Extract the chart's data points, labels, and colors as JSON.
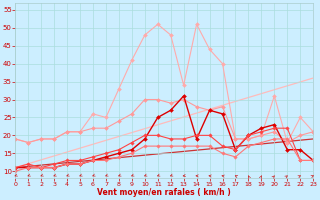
{
  "xlabel": "Vent moyen/en rafales ( km/h )",
  "xlim": [
    0,
    23
  ],
  "ylim": [
    8,
    57
  ],
  "yticks": [
    10,
    15,
    20,
    25,
    30,
    35,
    40,
    45,
    50,
    55
  ],
  "xticks": [
    0,
    1,
    2,
    3,
    4,
    5,
    6,
    7,
    8,
    9,
    10,
    11,
    12,
    13,
    14,
    15,
    16,
    17,
    18,
    19,
    20,
    21,
    22,
    23
  ],
  "background_color": "#cceeff",
  "grid_color": "#aadddd",
  "series": [
    {
      "label": "light_pink_line",
      "x": [
        0,
        1,
        2,
        3,
        4,
        5,
        6,
        7,
        8,
        9,
        10,
        11,
        12,
        13,
        14,
        15,
        16,
        17,
        18,
        19,
        20,
        21,
        22,
        23
      ],
      "y": [
        19,
        18,
        19,
        19,
        21,
        21,
        26,
        25,
        33,
        41,
        48,
        51,
        48,
        34,
        51,
        44,
        40,
        19,
        19,
        20,
        31,
        18,
        25,
        21
      ],
      "color": "#ffaaaa",
      "linewidth": 0.8,
      "marker": "D",
      "markersize": 2.0
    },
    {
      "label": "medium_pink_line",
      "x": [
        0,
        1,
        2,
        3,
        4,
        5,
        6,
        7,
        8,
        9,
        10,
        11,
        12,
        13,
        14,
        15,
        16,
        17,
        18,
        19,
        20,
        21,
        22,
        23
      ],
      "y": [
        19,
        18,
        19,
        19,
        21,
        21,
        22,
        22,
        24,
        26,
        30,
        30,
        29,
        30,
        28,
        27,
        28,
        19,
        19,
        20,
        21,
        18,
        20,
        21
      ],
      "color": "#ff9999",
      "linewidth": 0.8,
      "marker": "D",
      "markersize": 2.0
    },
    {
      "label": "dark_red_line",
      "x": [
        0,
        1,
        2,
        3,
        4,
        5,
        6,
        7,
        8,
        9,
        10,
        11,
        12,
        13,
        14,
        15,
        16,
        17,
        18,
        19,
        20,
        21,
        22,
        23
      ],
      "y": [
        11,
        11,
        11,
        11,
        12,
        12,
        13,
        14,
        15,
        16,
        19,
        25,
        27,
        31,
        19,
        27,
        26,
        16,
        20,
        22,
        23,
        16,
        16,
        13
      ],
      "color": "#dd0000",
      "linewidth": 1.0,
      "marker": "D",
      "markersize": 2.0
    },
    {
      "label": "medium_red_line",
      "x": [
        0,
        1,
        2,
        3,
        4,
        5,
        6,
        7,
        8,
        9,
        10,
        11,
        12,
        13,
        14,
        15,
        16,
        17,
        18,
        19,
        20,
        21,
        22,
        23
      ],
      "y": [
        11,
        12,
        11,
        12,
        13,
        13,
        14,
        15,
        16,
        18,
        20,
        20,
        19,
        19,
        20,
        20,
        17,
        16,
        20,
        21,
        22,
        22,
        13,
        13
      ],
      "color": "#ff4444",
      "linewidth": 0.8,
      "marker": "D",
      "markersize": 1.8
    },
    {
      "label": "light_red_line",
      "x": [
        0,
        1,
        2,
        3,
        4,
        5,
        6,
        7,
        8,
        9,
        10,
        11,
        12,
        13,
        14,
        15,
        16,
        17,
        18,
        19,
        20,
        21,
        22,
        23
      ],
      "y": [
        10,
        11,
        11,
        11,
        12,
        12,
        13,
        13,
        14,
        15,
        17,
        17,
        17,
        17,
        17,
        17,
        15,
        14,
        17,
        18,
        19,
        19,
        13,
        13
      ],
      "color": "#ff7777",
      "linewidth": 0.8,
      "marker": "D",
      "markersize": 1.8
    }
  ],
  "trend_lines": [
    {
      "x": [
        0,
        23
      ],
      "y": [
        11,
        36
      ],
      "color": "#ffbbbb",
      "linewidth": 0.9,
      "linestyle": "-"
    },
    {
      "x": [
        0,
        23
      ],
      "y": [
        11,
        19
      ],
      "color": "#cc3333",
      "linewidth": 0.9,
      "linestyle": "-"
    }
  ],
  "wind_arrows": {
    "x": [
      0,
      1,
      2,
      3,
      4,
      5,
      6,
      7,
      8,
      9,
      10,
      11,
      12,
      13,
      14,
      15,
      16,
      17,
      18,
      19,
      20,
      21,
      22,
      23
    ],
    "angles_deg": [
      225,
      225,
      225,
      225,
      225,
      225,
      225,
      225,
      225,
      225,
      225,
      225,
      225,
      200,
      180,
      170,
      160,
      135,
      100,
      80,
      70,
      60,
      50,
      45
    ],
    "y_base": 9.0,
    "color": "#cc2222",
    "size": 4.5
  }
}
